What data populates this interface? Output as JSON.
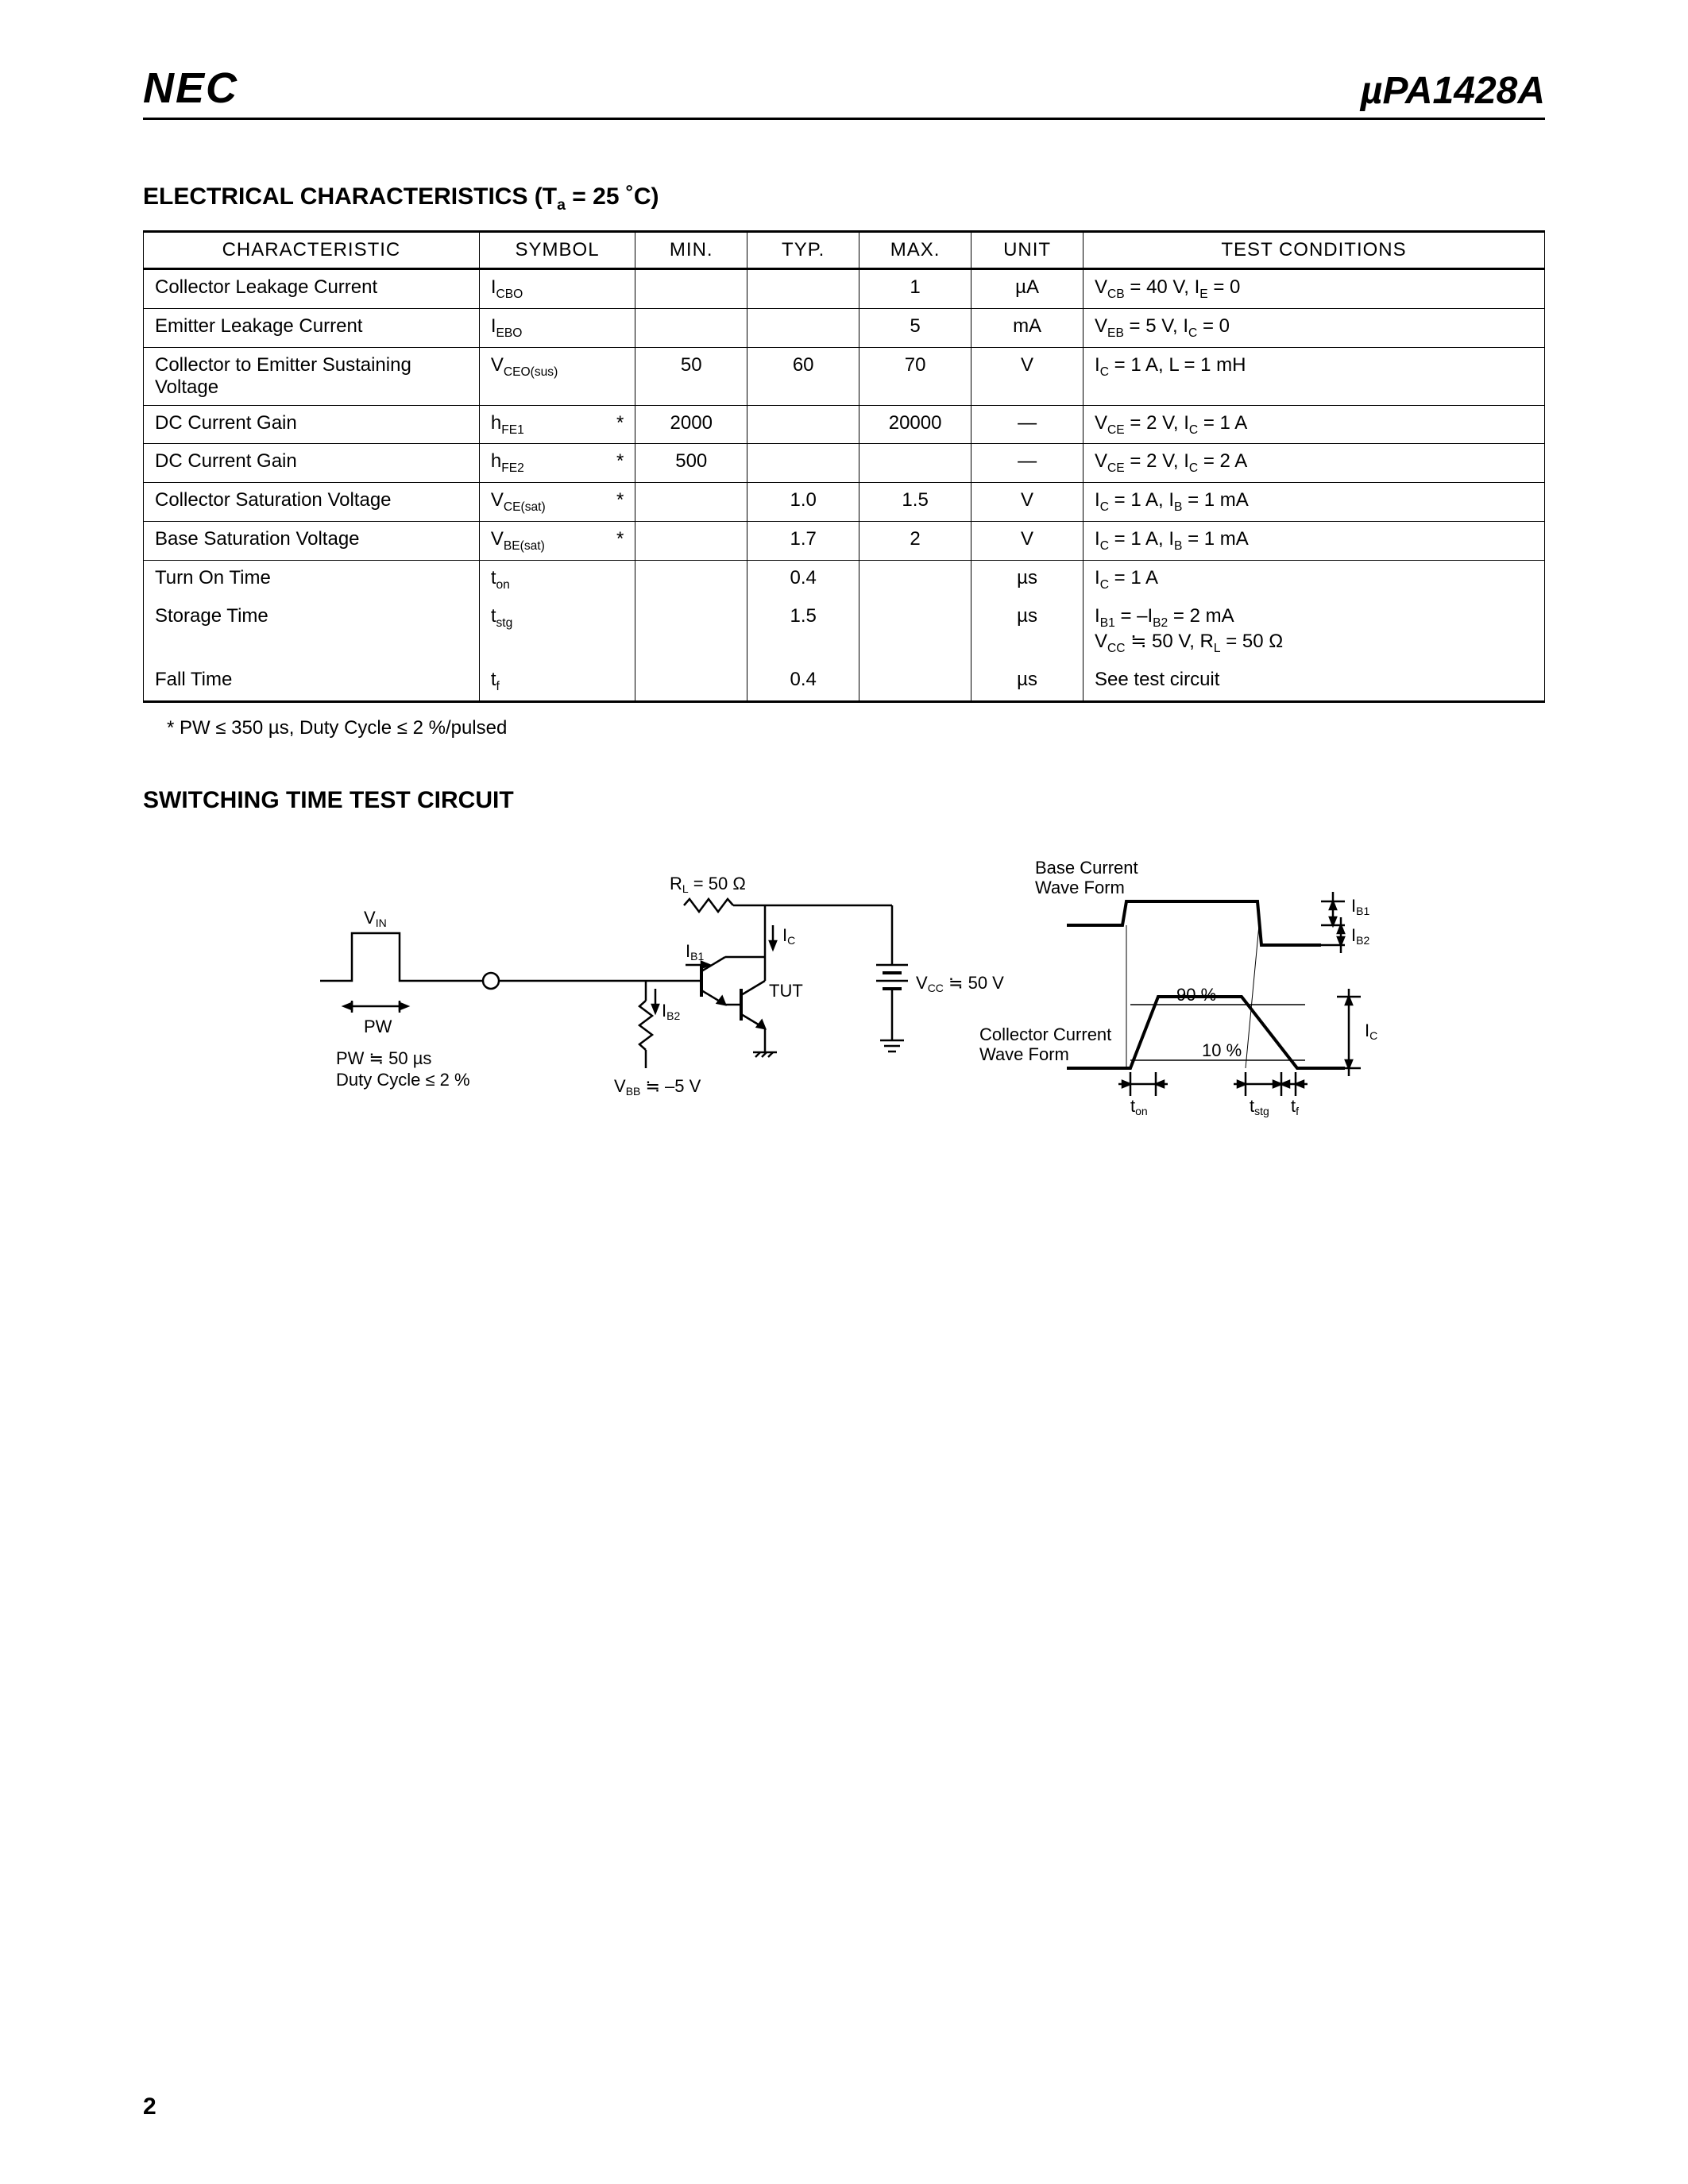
{
  "header": {
    "logo": "NEC",
    "part_number_prefix": "µ",
    "part_number": "PA1428A"
  },
  "section1": {
    "title_prefix": "ELECTRICAL CHARACTERISTICS (T",
    "title_sub": "a",
    "title_suffix": " = 25 ˚C)"
  },
  "table": {
    "headers": {
      "characteristic": "CHARACTERISTIC",
      "symbol": "SYMBOL",
      "min": "MIN.",
      "typ": "TYP.",
      "max": "MAX.",
      "unit": "UNIT",
      "conditions": "TEST CONDITIONS"
    },
    "rows": [
      {
        "char": "Collector Leakage Current",
        "sym": "I",
        "symsub": "CBO",
        "star": "",
        "min": "",
        "typ": "",
        "max": "1",
        "unit": "µA",
        "cond": "V",
        "condsub": "CB",
        "cond2": " = 40 V, I",
        "condsub2": "E",
        "cond3": " = 0",
        "bottom": true
      },
      {
        "char": "Emitter Leakage Current",
        "sym": "I",
        "symsub": "EBO",
        "star": "",
        "min": "",
        "typ": "",
        "max": "5",
        "unit": "mA",
        "cond": "V",
        "condsub": "EB",
        "cond2": " = 5 V, I",
        "condsub2": "C",
        "cond3": " = 0",
        "bottom": true
      },
      {
        "char": "Collector to Emitter Sustaining Voltage",
        "sym": "V",
        "symsub": "CEO(sus)",
        "star": "",
        "min": "50",
        "typ": "60",
        "max": "70",
        "unit": "V",
        "cond": "I",
        "condsub": "C",
        "cond2": " = 1 A, L = 1 mH",
        "condsub2": "",
        "cond3": "",
        "bottom": true
      },
      {
        "char": "DC Current Gain",
        "sym": "h",
        "symsub": "FE1",
        "star": "*",
        "min": "2000",
        "typ": "",
        "max": "20000",
        "unit": "—",
        "cond": "V",
        "condsub": "CE",
        "cond2": " = 2 V, I",
        "condsub2": "C",
        "cond3": " = 1 A",
        "bottom": true
      },
      {
        "char": "DC Current Gain",
        "sym": "h",
        "symsub": "FE2",
        "star": "*",
        "min": "500",
        "typ": "",
        "max": "",
        "unit": "—",
        "cond": "V",
        "condsub": "CE",
        "cond2": " = 2 V, I",
        "condsub2": "C",
        "cond3": " = 2 A",
        "bottom": true
      },
      {
        "char": "Collector Saturation Voltage",
        "sym": "V",
        "symsub": "CE(sat)",
        "star": "*",
        "min": "",
        "typ": "1.0",
        "max": "1.5",
        "unit": "V",
        "cond": "I",
        "condsub": "C",
        "cond2": " = 1 A, I",
        "condsub2": "B",
        "cond3": " = 1 mA",
        "bottom": true
      },
      {
        "char": "Base Saturation Voltage",
        "sym": "V",
        "symsub": "BE(sat)",
        "star": "*",
        "min": "",
        "typ": "1.7",
        "max": "2",
        "unit": "V",
        "cond": "I",
        "condsub": "C",
        "cond2": " = 1 A, I",
        "condsub2": "B",
        "cond3": " = 1 mA",
        "bottom": true
      },
      {
        "char": "Turn On Time",
        "sym": "t",
        "symsub": "on",
        "star": "",
        "min": "",
        "typ": "0.4",
        "max": "",
        "unit": "µs",
        "cond": "I",
        "condsub": "C",
        "cond2": " = 1 A",
        "condsub2": "",
        "cond3": "",
        "bottom": false
      },
      {
        "char": "Storage Time",
        "sym": "t",
        "symsub": "stg",
        "star": "",
        "min": "",
        "typ": "1.5",
        "max": "",
        "unit": "µs",
        "cond": "I",
        "condsub": "B1",
        "cond2": " = –I",
        "condsub2": "B2",
        "cond3": " = 2 mA",
        "bottom": false,
        "cond_line2": "V",
        "cond_line2_sub": "CC",
        "cond_line2_rest": " ≒ 50 V, R",
        "cond_line2_sub2": "L",
        "cond_line2_rest2": " = 50 Ω"
      },
      {
        "char": "Fall Time",
        "sym": "t",
        "symsub": "f",
        "star": "",
        "min": "",
        "typ": "0.4",
        "max": "",
        "unit": "µs",
        "cond": "See test circuit",
        "condsub": "",
        "cond2": "",
        "condsub2": "",
        "cond3": "",
        "bottom": false,
        "last": true
      }
    ]
  },
  "footnote": "* PW ≤ 350 µs, Duty Cycle ≤ 2 %/pulsed",
  "section2_title": "SWITCHING TIME TEST CIRCUIT",
  "diagram": {
    "rl_label": "R",
    "rl_sub": "L",
    "rl_val": " = 50 Ω",
    "vin": "V",
    "vin_sub": "IN",
    "pw": "PW",
    "pw_note1": "PW ≒ 50 µs",
    "pw_note2": "Duty Cycle ≤ 2 %",
    "ic": "I",
    "ic_sub": "C",
    "ib1": "I",
    "ib1_sub": "B1",
    "ib2": "I",
    "ib2_sub": "B2",
    "tut": "TUT",
    "vcc": "V",
    "vcc_sub": "CC",
    "vcc_val": " ≒ 50 V",
    "vbb": "V",
    "vbb_sub": "BB",
    "vbb_val": " ≒ –5 V",
    "base_wave": "Base Current",
    "wave_form": "Wave Form",
    "collector_wave": "Collector Current",
    "pct90": "90 %",
    "pct10": "10 %",
    "ton": "t",
    "ton_sub": "on",
    "tstg": "t",
    "tstg_sub": "stg",
    "tf": "t",
    "tf_sub": "f"
  },
  "page_number": "2"
}
